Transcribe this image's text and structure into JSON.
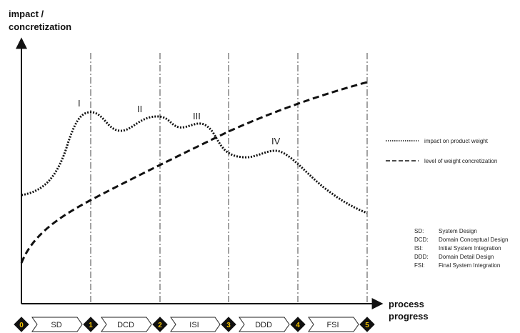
{
  "axes": {
    "y_label_line1": "impact /",
    "y_label_line2": "concretization",
    "x_label_line1": "process",
    "x_label_line2": "progress"
  },
  "peaks": [
    "I",
    "II",
    "III",
    "IV"
  ],
  "legend": {
    "impact": "impact  on product weight",
    "concretization": "level of weight concretization"
  },
  "phases": [
    "SD",
    "DCD",
    "ISI",
    "DDD",
    "FSI"
  ],
  "milestones": [
    "0",
    "1",
    "2",
    "3",
    "4",
    "5"
  ],
  "abbreviations": [
    {
      "abbr": "SD:",
      "full": "System Design"
    },
    {
      "abbr": "DCD:",
      "full": "Domain Conceptual Design"
    },
    {
      "abbr": "ISI:",
      "full": "Initial System Integration"
    },
    {
      "abbr": "DDD:",
      "full": "Domain Detail Design"
    },
    {
      "abbr": "FSI:",
      "full": "Final System Integration"
    }
  ],
  "colors": {
    "milestone_dark": "#111111",
    "milestone_yellow": "#f2c100",
    "line": "#111111"
  }
}
